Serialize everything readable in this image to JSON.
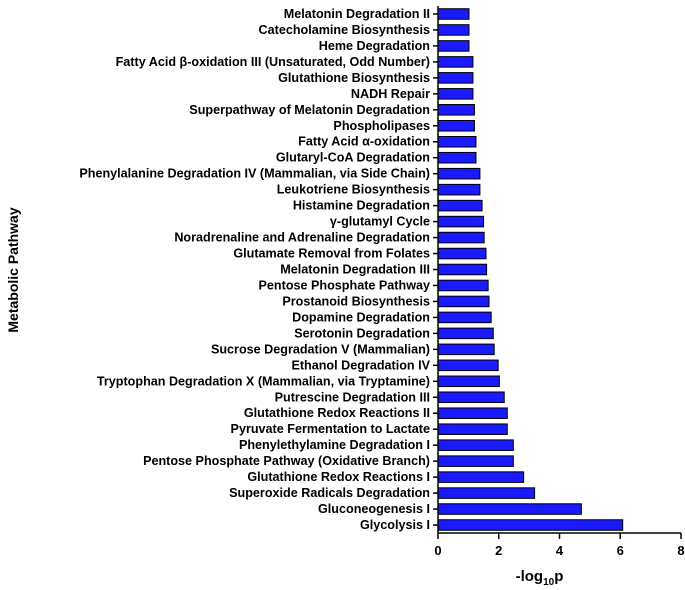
{
  "chart_data": {
    "type": "bar",
    "orientation": "horizontal",
    "xlabel_main": "-log",
    "xlabel_sub": "10",
    "xlabel_tail": "p",
    "ylabel": "Metabolic Pathway",
    "xlim": [
      0,
      8
    ],
    "xticks": [
      0,
      2,
      4,
      6,
      8
    ],
    "bar_color": "#1a1aff",
    "edge_color": "#000000",
    "grid": false,
    "categories": [
      "Melatonin Degradation II",
      "Catecholamine Biosynthesis",
      "Heme Degradation",
      "Fatty Acid β-oxidation III (Unsaturated, Odd Number)",
      "Glutathione Biosynthesis",
      "NADH Repair",
      "Superpathway of Melatonin Degradation",
      "Phospholipases",
      "Fatty Acid α-oxidation",
      "Glutaryl-CoA Degradation",
      "Phenylalanine Degradation IV (Mammalian, via Side Chain)",
      "Leukotriene Biosynthesis",
      "Histamine Degradation",
      "γ-glutamyl Cycle",
      "Noradrenaline and Adrenaline Degradation",
      "Glutamate Removal from Folates",
      "Melatonin Degradation III",
      "Pentose Phosphate Pathway",
      "Prostanoid Biosynthesis",
      "Dopamine Degradation",
      "Serotonin Degradation",
      "Sucrose Degradation V (Mammalian)",
      "Ethanol Degradation IV",
      "Tryptophan Degradation X (Mammalian, via Tryptamine)",
      "Putrescine Degradation III",
      "Glutathione Redox Reactions II",
      "Pyruvate Fermentation to Lactate",
      "Phenylethylamine Degradation I",
      "Pentose Phosphate Pathway (Oxidative Branch)",
      "Glutathione Redox Reactions I",
      "Superoxide Radicals Degradation",
      "Gluconeogenesis I",
      "Glycolysis I"
    ],
    "values": [
      1.02,
      1.02,
      1.02,
      1.15,
      1.15,
      1.15,
      1.2,
      1.2,
      1.25,
      1.25,
      1.38,
      1.38,
      1.45,
      1.5,
      1.52,
      1.58,
      1.6,
      1.65,
      1.68,
      1.75,
      1.82,
      1.85,
      1.98,
      2.02,
      2.18,
      2.28,
      2.28,
      2.48,
      2.48,
      2.82,
      3.18,
      4.72,
      6.08
    ]
  }
}
